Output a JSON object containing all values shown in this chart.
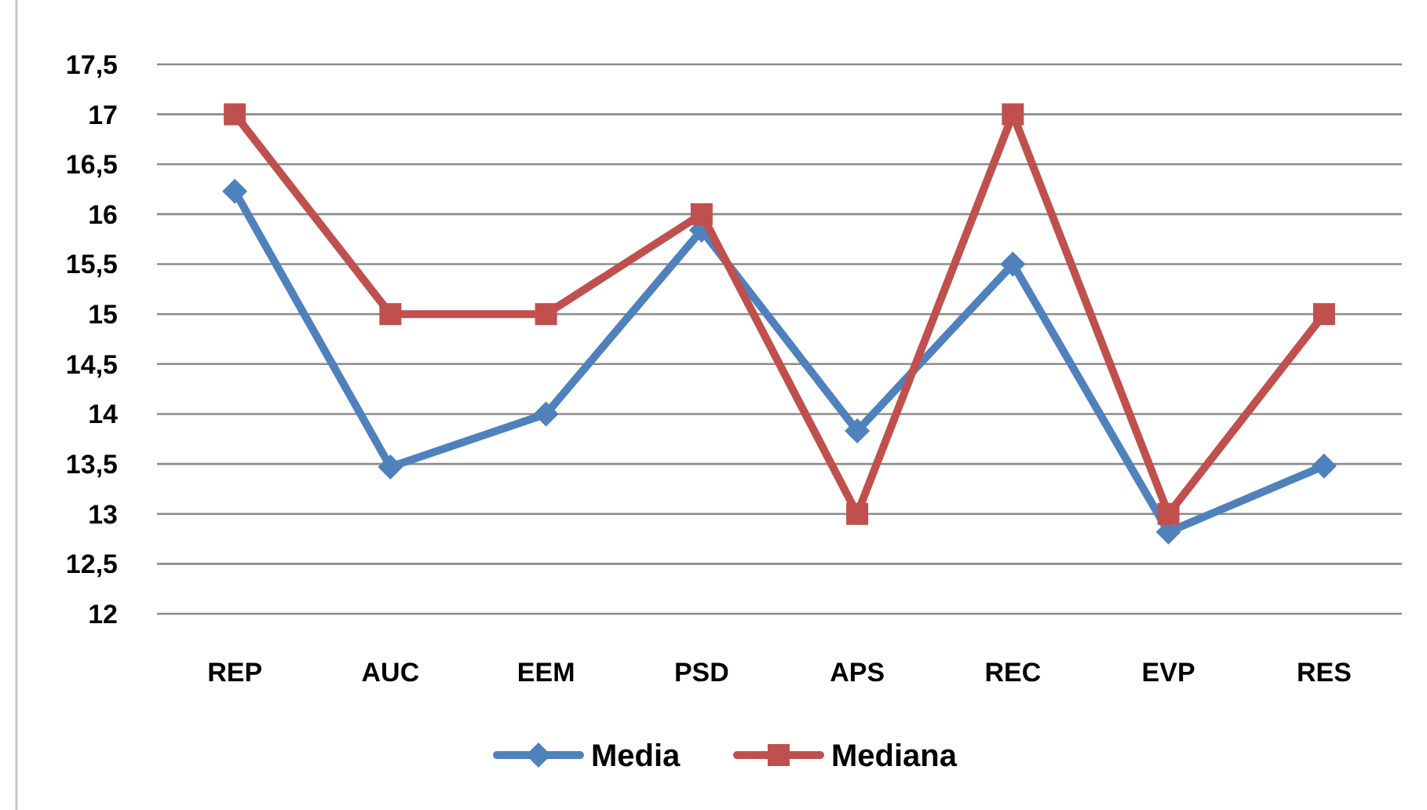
{
  "chart_data": {
    "type": "line",
    "categories": [
      "REP",
      "AUC",
      "EEM",
      "PSD",
      "APS",
      "REC",
      "EVP",
      "RES"
    ],
    "series": [
      {
        "name": "Media",
        "color": "#4f81bd",
        "marker": "diamond",
        "values": [
          16.23,
          13.47,
          14.0,
          15.84,
          13.83,
          15.5,
          12.82,
          13.48
        ]
      },
      {
        "name": "Mediana",
        "color": "#c0504d",
        "marker": "square",
        "values": [
          17,
          15,
          15,
          16,
          13,
          17,
          13,
          15
        ]
      }
    ],
    "ylim": [
      12,
      17.5
    ],
    "yticks": [
      12,
      {
        "value": 12.5,
        "label": "12,5"
      },
      13,
      {
        "value": 13.5,
        "label": "13,5"
      },
      14,
      {
        "value": 14.5,
        "label": "14,5"
      },
      15,
      {
        "value": 15.5,
        "label": "15,5"
      },
      16,
      {
        "value": 16.5,
        "label": "16,5"
      },
      17,
      {
        "value": 17.5,
        "label": "17,5"
      }
    ],
    "grid": "y",
    "legend": "bottom",
    "line_style": "solid"
  }
}
